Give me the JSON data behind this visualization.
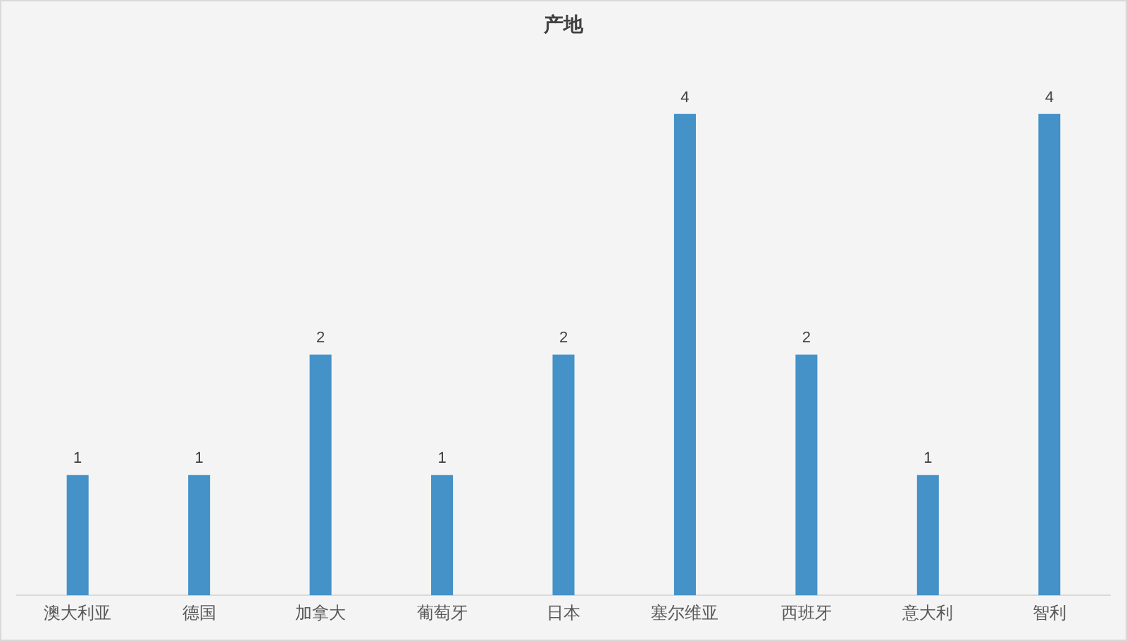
{
  "chart_data": {
    "type": "bar",
    "title": "产地",
    "categories": [
      "澳大利亚",
      "德国",
      "加拿大",
      "葡萄牙",
      "日本",
      "塞尔维亚",
      "西班牙",
      "意大利",
      "智利"
    ],
    "values": [
      1,
      1,
      2,
      1,
      2,
      4,
      2,
      1,
      4
    ],
    "color": "#4592c8",
    "data_labels": true,
    "grid": false
  }
}
